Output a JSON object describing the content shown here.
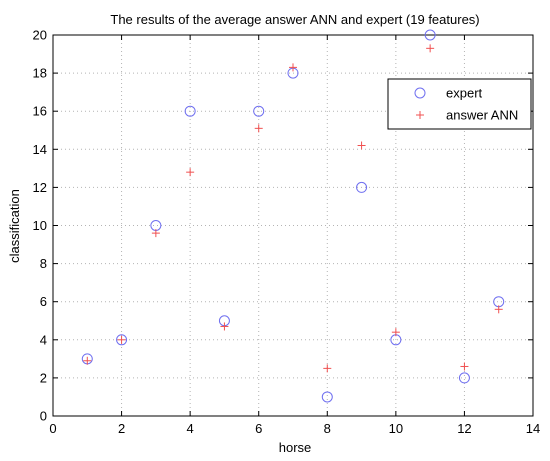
{
  "chart_data": {
    "type": "scatter",
    "title": "The results of the average answer ANN and expert (19 features)",
    "xlabel": "horse",
    "ylabel": "classification",
    "xlim": [
      0,
      14
    ],
    "ylim": [
      0,
      20
    ],
    "xticks": [
      0,
      2,
      4,
      6,
      8,
      10,
      12,
      14
    ],
    "yticks": [
      0,
      2,
      4,
      6,
      8,
      10,
      12,
      14,
      16,
      18,
      20
    ],
    "grid": true,
    "legend_position": "top-right",
    "series": [
      {
        "name": "expert",
        "marker": "circle",
        "color": "#7070f0",
        "x": [
          1,
          2,
          3,
          4,
          5,
          6,
          7,
          8,
          9,
          10,
          11,
          12,
          13
        ],
        "y": [
          3,
          4,
          10,
          16,
          5,
          16,
          18,
          1,
          12,
          4,
          20,
          2,
          6
        ]
      },
      {
        "name": "answer ANN",
        "marker": "plus",
        "color": "#f05050",
        "x": [
          1,
          2,
          3,
          4,
          5,
          6,
          7,
          8,
          9,
          10,
          11,
          12,
          13
        ],
        "y": [
          2.9,
          4.0,
          9.6,
          12.8,
          4.7,
          15.1,
          18.3,
          2.5,
          14.2,
          4.4,
          19.3,
          2.6,
          5.6
        ]
      }
    ]
  }
}
